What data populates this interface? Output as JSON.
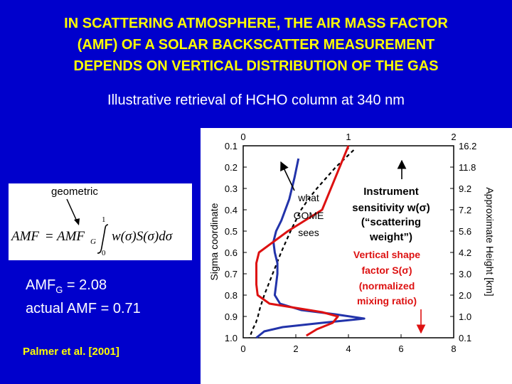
{
  "title": {
    "line1": "IN SCATTERING ATMOSPHERE, THE AIR MASS FACTOR",
    "line2": "(AMF) OF A SOLAR BACKSCATTER MEASUREMENT",
    "line3": "DEPENDS ON VERTICAL DISTRIBUTION OF THE GAS"
  },
  "subtitle": "Illustrative retrieval of HCHO column at 340 nm",
  "formula": {
    "label": "geometric",
    "lhs": "AMF",
    "eq": "=",
    "amf": "AMF",
    "sub": "G",
    "upper": "1",
    "lower": "0",
    "integrand": "w(σ)S(σ)dσ"
  },
  "amf_g": {
    "prefix": "AMF",
    "sub": "G",
    "value": " = 2.08"
  },
  "actual_amf": "actual AMF = 0.71",
  "citation": "Palmer et al. [2001]",
  "colors": {
    "background": "#0000cc",
    "title": "#ffff00",
    "shape_factor": "#dd1111",
    "sensitivity": "#2233aa"
  },
  "chart_data": {
    "type": "line",
    "ylabel": "Sigma coordinate",
    "y2label": "Approximate Height [km]",
    "ylim": [
      1.0,
      0.1
    ],
    "y_ticks": [
      "0.1",
      "0.2",
      "0.3",
      "0.4",
      "0.5",
      "0.6",
      "0.7",
      "0.8",
      "0.9",
      "1.0"
    ],
    "y2_ticks": [
      "16.2",
      "11.8",
      "9.2",
      "7.2",
      "5.6",
      "4.2",
      "3.0",
      "2.0",
      "1.0",
      "0.1"
    ],
    "x_top": {
      "range": [
        0,
        2
      ],
      "ticks": [
        "0",
        "1",
        "2"
      ]
    },
    "x_bottom": {
      "range": [
        0,
        8
      ],
      "ticks": [
        "0",
        "2",
        "4",
        "6",
        "8"
      ]
    },
    "annotations": {
      "gome_l1": "what",
      "gome_l2": "GOME",
      "gome_l3": "sees",
      "sens_l1": "Instrument",
      "sens_l2": "sensitivity w(σ)",
      "sens_l3": "(“scattering",
      "sens_l4": "weight”)",
      "shape_l1": "Vertical shape",
      "shape_l2": "factor S(σ)",
      "shape_l3": "(normalized",
      "shape_l4": "mixing ratio)"
    },
    "series": [
      {
        "axis": "top",
        "sigma": [
          0.12,
          0.2,
          0.3,
          0.35,
          0.4,
          0.5,
          0.6,
          0.7,
          0.8,
          0.86,
          0.9,
          0.93,
          0.96,
          1.0
        ],
        "values": [
          1.05,
          0.88,
          0.7,
          0.62,
          0.55,
          0.45,
          0.36,
          0.28,
          0.2,
          0.16,
          0.14,
          0.12,
          0.09,
          0.06
        ]
      },
      {
        "axis": "bottom",
        "sigma": [
          0.16,
          0.25,
          0.35,
          0.45,
          0.5,
          0.55,
          0.6,
          0.65,
          0.7,
          0.75,
          0.8,
          0.84,
          0.87,
          0.89,
          0.91,
          0.93,
          0.95,
          0.97,
          1.0
        ],
        "values": [
          2.1,
          1.95,
          1.75,
          1.45,
          1.25,
          1.15,
          1.2,
          1.3,
          1.3,
          1.25,
          1.2,
          1.4,
          2.2,
          3.5,
          4.6,
          3.0,
          1.5,
          0.8,
          0.5
        ]
      },
      {
        "axis": "bottom",
        "sigma": [
          0.1,
          0.4,
          0.5,
          0.6,
          0.65,
          0.7,
          0.75,
          0.8,
          0.84,
          0.86,
          0.88,
          0.9,
          0.93,
          0.96,
          0.99
        ],
        "values": [
          4.0,
          3.0,
          1.7,
          0.6,
          0.5,
          0.5,
          0.5,
          0.55,
          1.0,
          2.0,
          3.0,
          3.6,
          3.4,
          2.8,
          2.4
        ]
      }
    ]
  }
}
